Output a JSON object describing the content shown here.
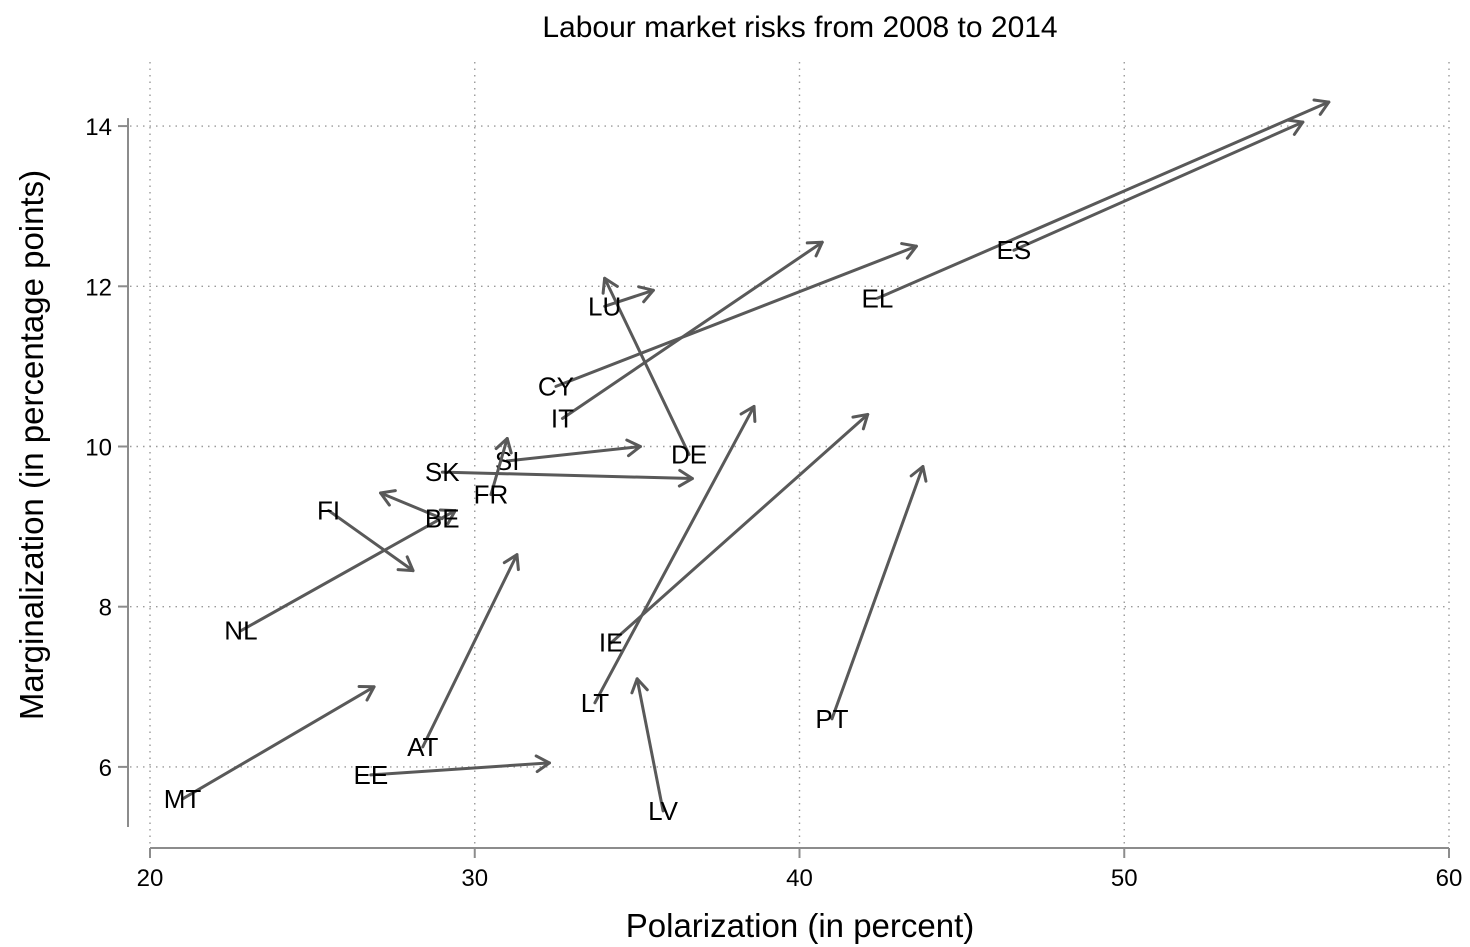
{
  "chart_data": {
    "type": "scatter",
    "title": "Labour market risks from 2008 to 2014",
    "xlabel": "Polarization (in percent)",
    "ylabel": "Marginalization (in percentage points)",
    "xlim": [
      20,
      60
    ],
    "ylim": [
      5.0,
      14.8
    ],
    "xticks": [
      20,
      30,
      40,
      50,
      60
    ],
    "yticks": [
      6,
      8,
      10,
      12,
      14
    ],
    "grid": true,
    "points": [
      {
        "label": "MT",
        "x0": 21.0,
        "y0": 5.6,
        "x1": 26.9,
        "y1": 7.0
      },
      {
        "label": "EE",
        "x0": 26.8,
        "y0": 5.9,
        "x1": 32.3,
        "y1": 6.05
      },
      {
        "label": "AT",
        "x0": 28.4,
        "y0": 6.25,
        "x1": 31.3,
        "y1": 8.65
      },
      {
        "label": "NL",
        "x0": 22.8,
        "y0": 7.7,
        "x1": 29.4,
        "y1": 9.2
      },
      {
        "label": "FI",
        "x0": 25.5,
        "y0": 9.2,
        "x1": 28.1,
        "y1": 8.45
      },
      {
        "label": "BE",
        "x0": 29.0,
        "y0": 9.1,
        "x1": 27.1,
        "y1": 9.42
      },
      {
        "label": "SK",
        "x0": 29.0,
        "y0": 9.68,
        "x1": 36.7,
        "y1": 9.6
      },
      {
        "label": "SI",
        "x0": 31.0,
        "y0": 9.82,
        "x1": 35.1,
        "y1": 10.0
      },
      {
        "label": "FR",
        "x0": 30.5,
        "y0": 9.4,
        "x1": 31.0,
        "y1": 10.1
      },
      {
        "label": "DE",
        "x0": 36.6,
        "y0": 9.9,
        "x1": 34.0,
        "y1": 12.1
      },
      {
        "label": "LU",
        "x0": 34.0,
        "y0": 11.75,
        "x1": 35.5,
        "y1": 11.95
      },
      {
        "label": "CY",
        "x0": 32.5,
        "y0": 10.75,
        "x1": 43.6,
        "y1": 12.5
      },
      {
        "label": "IT",
        "x0": 32.7,
        "y0": 10.35,
        "x1": 40.7,
        "y1": 12.55
      },
      {
        "label": "EL",
        "x0": 42.4,
        "y0": 11.85,
        "x1": 56.3,
        "y1": 14.3
      },
      {
        "label": "ES",
        "x0": 46.6,
        "y0": 12.45,
        "x1": 55.5,
        "y1": 14.05
      },
      {
        "label": "IE",
        "x0": 34.2,
        "y0": 7.55,
        "x1": 42.1,
        "y1": 10.4
      },
      {
        "label": "LT",
        "x0": 33.7,
        "y0": 6.8,
        "x1": 38.6,
        "y1": 10.5
      },
      {
        "label": "LV",
        "x0": 35.8,
        "y0": 5.45,
        "x1": 35.0,
        "y1": 7.1
      },
      {
        "label": "PT",
        "x0": 41.0,
        "y0": 6.6,
        "x1": 43.8,
        "y1": 9.75
      }
    ]
  }
}
